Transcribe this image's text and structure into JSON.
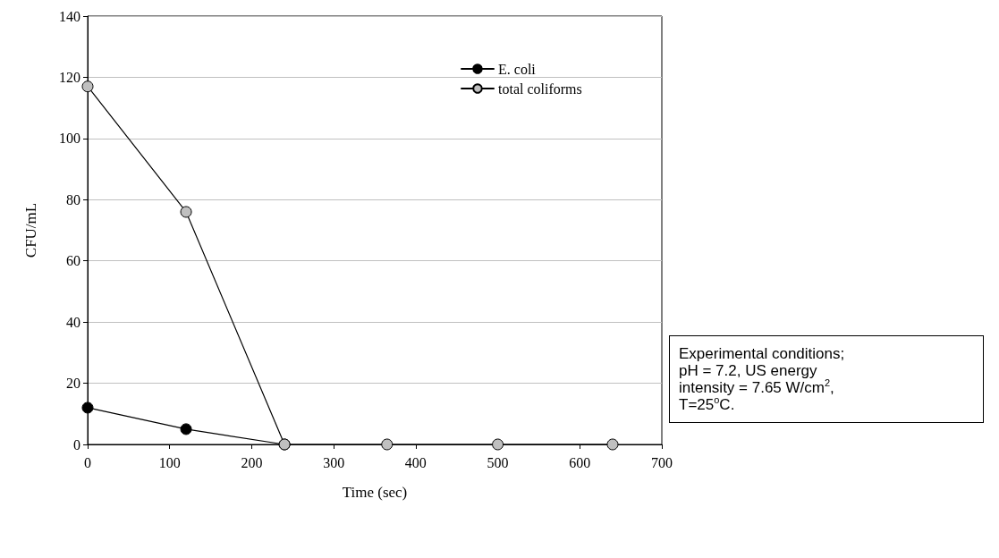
{
  "chart_data": {
    "type": "line",
    "xlabel": "Time (sec)",
    "ylabel": "CFU/mL",
    "xlim": [
      0,
      700
    ],
    "xticks": [
      0,
      100,
      200,
      300,
      400,
      500,
      600,
      700
    ],
    "ylim": [
      0,
      140
    ],
    "yticks": [
      0,
      20,
      40,
      60,
      80,
      100,
      120,
      140
    ],
    "series": [
      {
        "name": "E. coli",
        "color": "#000000",
        "x": [
          0,
          120,
          240
        ],
        "values": [
          12,
          5,
          0
        ]
      },
      {
        "name": "total coliforms",
        "color": "#c0c0c0",
        "x": [
          0,
          120,
          240,
          365,
          500,
          640
        ],
        "values": [
          117,
          76,
          0,
          0,
          0,
          0
        ]
      }
    ],
    "marker": "circle",
    "line_style": "solid",
    "grid": "y",
    "legend": "top right",
    "annotations": [
      "Experimental conditions;\npH = 7.2, US energy\nintensity = 7.65 W/cm$^{2}$,\nT=25$^{o}$C."
    ]
  }
}
